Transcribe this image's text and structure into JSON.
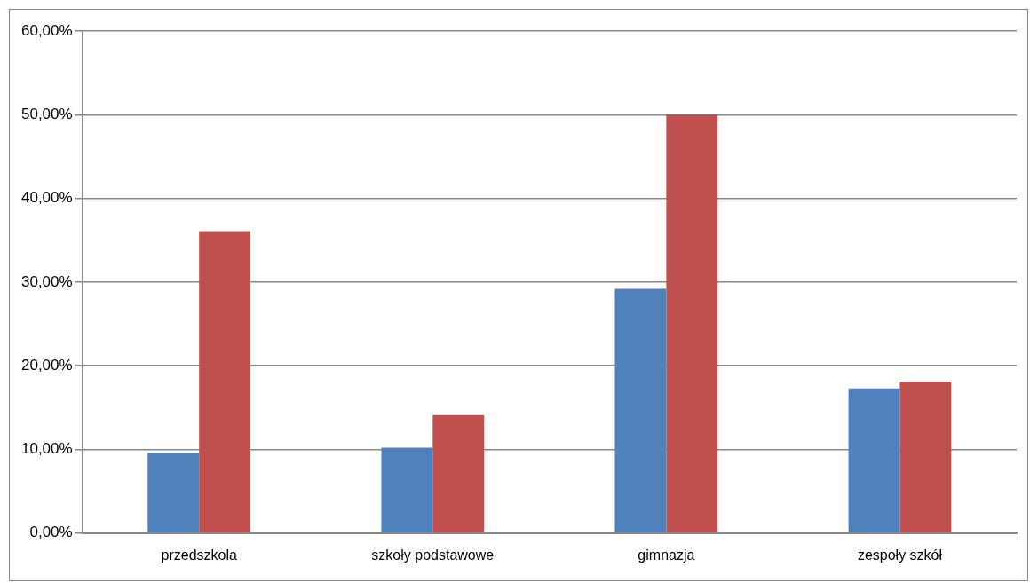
{
  "chart_data": {
    "type": "bar",
    "categories": [
      "przedszkola",
      "szkoły podstawowe",
      "gimnazja",
      "zespoły szkół"
    ],
    "series": [
      {
        "color": "#4f81bd",
        "values": [
          9.6,
          10.2,
          29.2,
          17.3
        ]
      },
      {
        "color": "#c0504d",
        "values": [
          36.1,
          14.1,
          50.0,
          18.1
        ]
      }
    ],
    "ylim": [
      0,
      60
    ],
    "yticks": [
      {
        "value": 0,
        "label": "0,00%"
      },
      {
        "value": 10,
        "label": "10,00%"
      },
      {
        "value": 20,
        "label": "20,00%"
      },
      {
        "value": 30,
        "label": "30,00%"
      },
      {
        "value": 40,
        "label": "40,00%"
      },
      {
        "value": 50,
        "label": "50,00%"
      },
      {
        "value": 60,
        "label": "60,00%"
      }
    ],
    "grid": "y",
    "legend": false
  }
}
